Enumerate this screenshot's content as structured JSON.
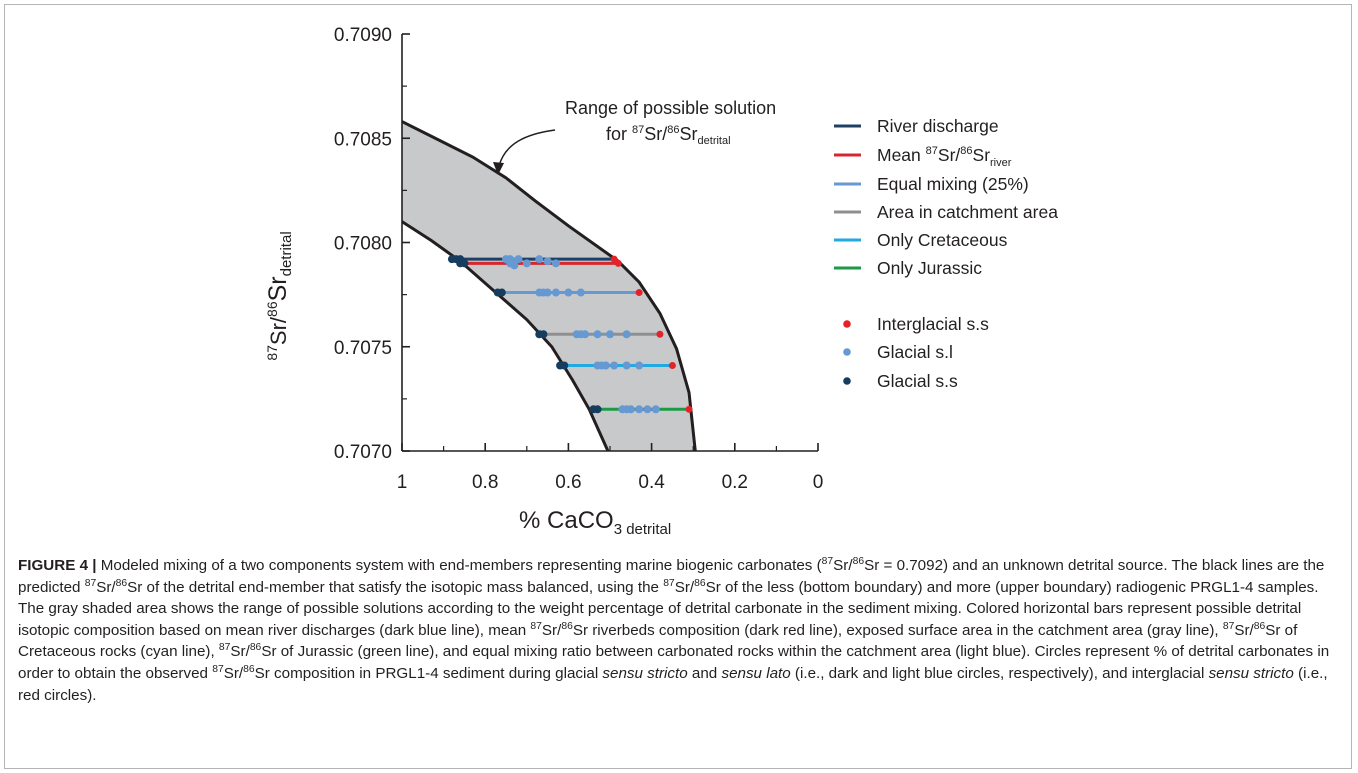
{
  "chart_data": {
    "type": "scatter",
    "xlabel": "% CaCO",
    "xlabel_sub": "3 detrital",
    "ylabel_sup1": "87",
    "ylabel_mid": "Sr/",
    "ylabel_sup2": "86",
    "ylabel_main": "Sr",
    "ylabel_sub": "detrital",
    "xlim": [
      1,
      0
    ],
    "ylim": [
      0.707,
      0.709
    ],
    "x_ticks": [
      "1",
      "0.8",
      "0.6",
      "0.4",
      "0.2",
      "0"
    ],
    "y_ticks": [
      "0.7090",
      "0.7085",
      "0.7080",
      "0.7075",
      "0.7070"
    ],
    "annotation_line1": "Range of possible solution",
    "annotation_line2_pre": "for ",
    "annotation_line2_sup1": "87",
    "annotation_line2_mid": "Sr/",
    "annotation_line2_sup2": "86",
    "annotation_line2_main": "Sr",
    "annotation_line2_sub": "detrital",
    "upper_boundary": [
      [
        1.0,
        0.70858
      ],
      [
        0.92,
        0.7085
      ],
      [
        0.83,
        0.70841
      ],
      [
        0.75,
        0.70831
      ],
      [
        0.68,
        0.7082
      ],
      [
        0.6,
        0.70808
      ],
      [
        0.48,
        0.70791
      ],
      [
        0.43,
        0.70781
      ],
      [
        0.38,
        0.70766
      ],
      [
        0.34,
        0.70749
      ],
      [
        0.31,
        0.70728
      ],
      [
        0.295,
        0.707
      ]
    ],
    "lower_boundary": [
      [
        1.0,
        0.7081
      ],
      [
        0.93,
        0.70801
      ],
      [
        0.86,
        0.70791
      ],
      [
        0.78,
        0.70777
      ],
      [
        0.7,
        0.70763
      ],
      [
        0.64,
        0.7075
      ],
      [
        0.59,
        0.70734
      ],
      [
        0.55,
        0.7072
      ],
      [
        0.505,
        0.707
      ]
    ],
    "bars": [
      {
        "name": "River discharge",
        "color": "#1e3f66",
        "y": 0.70792,
        "x_start": 0.88,
        "x_end": 0.49
      },
      {
        "name": "Mean",
        "color": "#d7272c",
        "y": 0.7079,
        "x_start": 0.86,
        "x_end": 0.48
      },
      {
        "name": "Equal mixing (25%)",
        "color": "#6699d1",
        "y": 0.70776,
        "x_start": 0.77,
        "x_end": 0.43
      },
      {
        "name": "Area in catchment area",
        "color": "#8f8f91",
        "y": 0.70756,
        "x_start": 0.67,
        "x_end": 0.38
      },
      {
        "name": "Only Cretaceous",
        "color": "#21a9e1",
        "y": 0.70741,
        "x_start": 0.62,
        "x_end": 0.35
      },
      {
        "name": "Only Jurassic",
        "color": "#1b9a47",
        "y": 0.7072,
        "x_start": 0.54,
        "x_end": 0.31
      }
    ],
    "points": {
      "interglacial": [
        [
          0.49,
          0.70792
        ],
        [
          0.48,
          0.7079
        ],
        [
          0.43,
          0.70776
        ],
        [
          0.38,
          0.70756
        ],
        [
          0.35,
          0.70741
        ],
        [
          0.31,
          0.7072
        ]
      ],
      "glacial_sl": [
        [
          0.75,
          0.70792
        ],
        [
          0.74,
          0.70792
        ],
        [
          0.73,
          0.70791
        ],
        [
          0.72,
          0.70792
        ],
        [
          0.7,
          0.7079
        ],
        [
          0.67,
          0.70792
        ],
        [
          0.65,
          0.70791
        ],
        [
          0.63,
          0.7079
        ],
        [
          0.74,
          0.7079
        ],
        [
          0.73,
          0.70789
        ],
        [
          0.67,
          0.70776
        ],
        [
          0.66,
          0.70776
        ],
        [
          0.65,
          0.70776
        ],
        [
          0.63,
          0.70776
        ],
        [
          0.6,
          0.70776
        ],
        [
          0.57,
          0.70776
        ],
        [
          0.58,
          0.70756
        ],
        [
          0.57,
          0.70756
        ],
        [
          0.56,
          0.70756
        ],
        [
          0.53,
          0.70756
        ],
        [
          0.5,
          0.70756
        ],
        [
          0.46,
          0.70756
        ],
        [
          0.53,
          0.70741
        ],
        [
          0.52,
          0.70741
        ],
        [
          0.51,
          0.70741
        ],
        [
          0.49,
          0.70741
        ],
        [
          0.46,
          0.70741
        ],
        [
          0.43,
          0.70741
        ],
        [
          0.47,
          0.7072
        ],
        [
          0.46,
          0.7072
        ],
        [
          0.45,
          0.7072
        ],
        [
          0.43,
          0.7072
        ],
        [
          0.41,
          0.7072
        ],
        [
          0.39,
          0.7072
        ]
      ],
      "glacial_ss": [
        [
          0.88,
          0.70792
        ],
        [
          0.87,
          0.70792
        ],
        [
          0.86,
          0.70792
        ],
        [
          0.86,
          0.7079
        ],
        [
          0.85,
          0.7079
        ],
        [
          0.77,
          0.70776
        ],
        [
          0.76,
          0.70776
        ],
        [
          0.67,
          0.70756
        ],
        [
          0.66,
          0.70756
        ],
        [
          0.62,
          0.70741
        ],
        [
          0.61,
          0.70741
        ],
        [
          0.54,
          0.7072
        ],
        [
          0.53,
          0.7072
        ]
      ]
    },
    "legend_lines": [
      {
        "label": "River discharge",
        "color": "#1e3f66"
      },
      {
        "label_pre": "Mean ",
        "sup1": "87",
        "mid": "Sr/",
        "sup2": "86",
        "main": "Sr",
        "sub": "river",
        "color": "#d7272c"
      },
      {
        "label": "Equal mixing (25%)",
        "color": "#6699d1"
      },
      {
        "label": "Area in catchment area",
        "color": "#8f8f91"
      },
      {
        "label": "Only Cretaceous",
        "color": "#21a9e1"
      },
      {
        "label": "Only Jurassic",
        "color": "#1b9a47"
      }
    ],
    "legend_points": [
      {
        "label": "Interglacial s.s",
        "color": "#e42229"
      },
      {
        "label": "Glacial s.l",
        "color": "#6699d1"
      },
      {
        "label": "Glacial s.s",
        "color": "#163c5e"
      }
    ],
    "region_color": "#c8c9cb"
  },
  "caption": {
    "label": "FIGURE 4 |",
    "s1": " Modeled mixing of a two components system with end-members representing marine biogenic carbonates (",
    "s2": "Sr/",
    "s3": "Sr = 0.7092) and an unknown detrital source. The black lines are the predicted ",
    "s4": "Sr/",
    "s5": "Sr of the detrital end-member that satisfy the isotopic mass balanced, using the ",
    "s6": "Sr/",
    "s7": "Sr of the less (bottom boundary) and more (upper boundary) radiogenic PRGL1-4 samples. The gray shaded area shows the range of possible solutions according to the weight percentage of detrital carbonate in the sediment mixing. Colored horizontal bars represent possible detrital isotopic composition based on mean river discharges (dark blue line), mean ",
    "s8": "Sr/",
    "s9": "Sr riverbeds composition (dark red line), exposed surface area in the catchment area (gray line), ",
    "s10": "Sr/",
    "s11": "Sr of Cretaceous rocks (cyan line), ",
    "s12": "Sr/",
    "s13": "Sr of Jurassic (green line), and equal mixing ratio between carbonated rocks within the catchment area (light blue). Circles represent % of detrital carbonates in order to obtain the observed ",
    "s14": "Sr/",
    "s15": "Sr composition in PRGL1-4 sediment during glacial ",
    "s16": "sensu stricto",
    "s17": " and ",
    "s18": "sensu lato",
    "s19": " (i.e., dark and light blue circles, respectively), and interglacial ",
    "s20": "sensu stricto",
    "s21": " (i.e., red circles).",
    "n87": "87",
    "n86": "86"
  }
}
